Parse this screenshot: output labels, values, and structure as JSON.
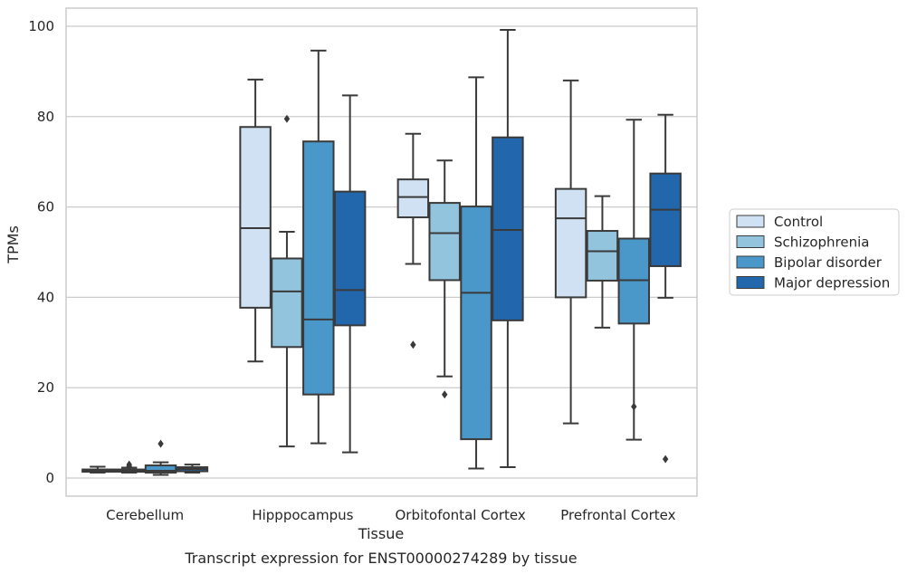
{
  "caption": "Transcript expression for ENST00000274289 by tissue",
  "colors": {
    "Control": "#cfe1f2",
    "Schizophrenia": "#93c4de",
    "Bipolar disorder": "#4a98c9",
    "Major depression": "#2266ac",
    "edge": "#3a3a3a",
    "grid": "#cccccc",
    "frame": "#cccccc"
  },
  "chart_data": {
    "type": "box",
    "title": "",
    "xlabel": "Tissue",
    "ylabel": "TPMs",
    "ylim": [
      -4,
      104
    ],
    "yticks": [
      0,
      20,
      40,
      60,
      80,
      100
    ],
    "grid": true,
    "legend_position": "right",
    "categories": [
      "Cerebellum",
      "Hipppocampus",
      "Orbitofontal Cortex",
      "Prefrontal Cortex"
    ],
    "series": [
      {
        "name": "Control",
        "boxes": [
          {
            "whislo": 1.2,
            "q1": 1.4,
            "med": 1.6,
            "q3": 1.9,
            "whishi": 2.5,
            "fliers": []
          },
          {
            "whislo": 25.8,
            "q1": 37.7,
            "med": 55.3,
            "q3": 77.7,
            "whishi": 88.2,
            "fliers": []
          },
          {
            "whislo": 47.4,
            "q1": 57.7,
            "med": 62.2,
            "q3": 66.1,
            "whishi": 76.2,
            "fliers": [
              29.5
            ]
          },
          {
            "whislo": 12.1,
            "q1": 40.0,
            "med": 57.5,
            "q3": 64.0,
            "whishi": 88.0,
            "fliers": []
          }
        ]
      },
      {
        "name": "Schizophrenia",
        "boxes": [
          {
            "whislo": 1.2,
            "q1": 1.4,
            "med": 1.6,
            "q3": 1.9,
            "whishi": 2.3,
            "fliers": [
              2.6,
              3.0
            ]
          },
          {
            "whislo": 7.0,
            "q1": 29.0,
            "med": 41.3,
            "q3": 48.6,
            "whishi": 54.5,
            "fliers": [
              79.5
            ]
          },
          {
            "whislo": 22.5,
            "q1": 43.8,
            "med": 54.2,
            "q3": 60.9,
            "whishi": 70.3,
            "fliers": [
              18.5
            ]
          },
          {
            "whislo": 33.3,
            "q1": 43.7,
            "med": 50.2,
            "q3": 54.7,
            "whishi": 62.4,
            "fliers": []
          }
        ]
      },
      {
        "name": "Bipolar disorder",
        "boxes": [
          {
            "whislo": 0.7,
            "q1": 1.2,
            "med": 1.6,
            "q3": 2.8,
            "whishi": 3.5,
            "fliers": [
              7.6
            ]
          },
          {
            "whislo": 7.7,
            "q1": 18.5,
            "med": 35.1,
            "q3": 74.5,
            "whishi": 94.6,
            "fliers": []
          },
          {
            "whislo": 2.1,
            "q1": 8.6,
            "med": 41.0,
            "q3": 60.1,
            "whishi": 88.7,
            "fliers": []
          },
          {
            "whislo": 8.5,
            "q1": 34.2,
            "med": 43.8,
            "q3": 53.0,
            "whishi": 79.3,
            "fliers": [
              15.8
            ]
          }
        ]
      },
      {
        "name": "Major depression",
        "boxes": [
          {
            "whislo": 1.2,
            "q1": 1.5,
            "med": 2.0,
            "q3": 2.4,
            "whishi": 3.0,
            "fliers": []
          },
          {
            "whislo": 5.7,
            "q1": 33.8,
            "med": 41.6,
            "q3": 63.4,
            "whishi": 84.7,
            "fliers": []
          },
          {
            "whislo": 2.4,
            "q1": 34.9,
            "med": 54.9,
            "q3": 75.4,
            "whishi": 99.2,
            "fliers": []
          },
          {
            "whislo": 39.9,
            "q1": 46.9,
            "med": 59.4,
            "q3": 67.4,
            "whishi": 80.4,
            "fliers": [
              4.2
            ]
          }
        ]
      }
    ]
  }
}
